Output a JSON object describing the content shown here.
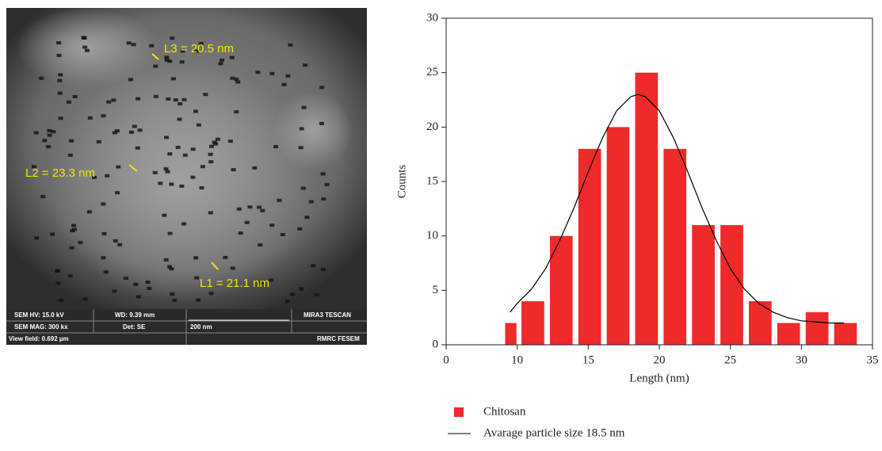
{
  "image": {
    "labels": [
      "L3 = 20.5 nm",
      "L2 = 23.3 nm",
      "L1 = 21.1 nm"
    ],
    "info": [
      "SEM HV: 15.0 kV",
      "WD: 9.39 mm",
      "MIRA3 TESCAN",
      "SEM MAG: 300 kx",
      "Det: SE",
      "200 nm",
      "View field: 0.692 µm",
      "RMRC FESEM"
    ]
  },
  "chart_data": {
    "type": "histogram",
    "xlabel": "Length (nm)",
    "ylabel": "Counts",
    "bins": [
      8.1,
      10.1,
      12.1,
      14.1,
      16.1,
      18.1,
      20.1,
      22.1,
      24.1,
      26.1,
      28.1,
      30.1,
      32.1,
      34.1
    ],
    "series": [
      {
        "name": "Chitosan",
        "color": "#ee2a2a",
        "values": [
          2,
          4,
          10,
          18,
          20,
          25,
          18,
          11,
          11,
          4,
          2,
          3,
          2
        ]
      }
    ],
    "fit": {
      "name": "Avarage particle size 18.5 nm",
      "color": "#000000",
      "x": [
        9,
        10,
        11,
        12,
        13,
        14,
        15,
        16,
        17,
        18,
        18.5,
        19,
        20,
        21,
        22,
        23,
        24,
        25,
        26,
        27,
        28,
        29,
        30,
        31,
        32,
        33
      ],
      "y": [
        3.0,
        3.8,
        5.1,
        7.0,
        9.6,
        12.6,
        15.9,
        19.0,
        21.5,
        22.8,
        23.0,
        22.8,
        21.5,
        19.0,
        15.9,
        12.6,
        9.6,
        7.0,
        5.1,
        3.8,
        3.0,
        2.5,
        2.2,
        2.1,
        2.0,
        2.0
      ]
    },
    "xlim": [
      0,
      35
    ],
    "xticks": [
      0,
      10,
      15,
      20,
      25,
      30,
      35
    ],
    "ylim": [
      0,
      30
    ],
    "yticks": [
      0,
      5,
      10,
      15,
      20,
      25,
      30
    ]
  }
}
